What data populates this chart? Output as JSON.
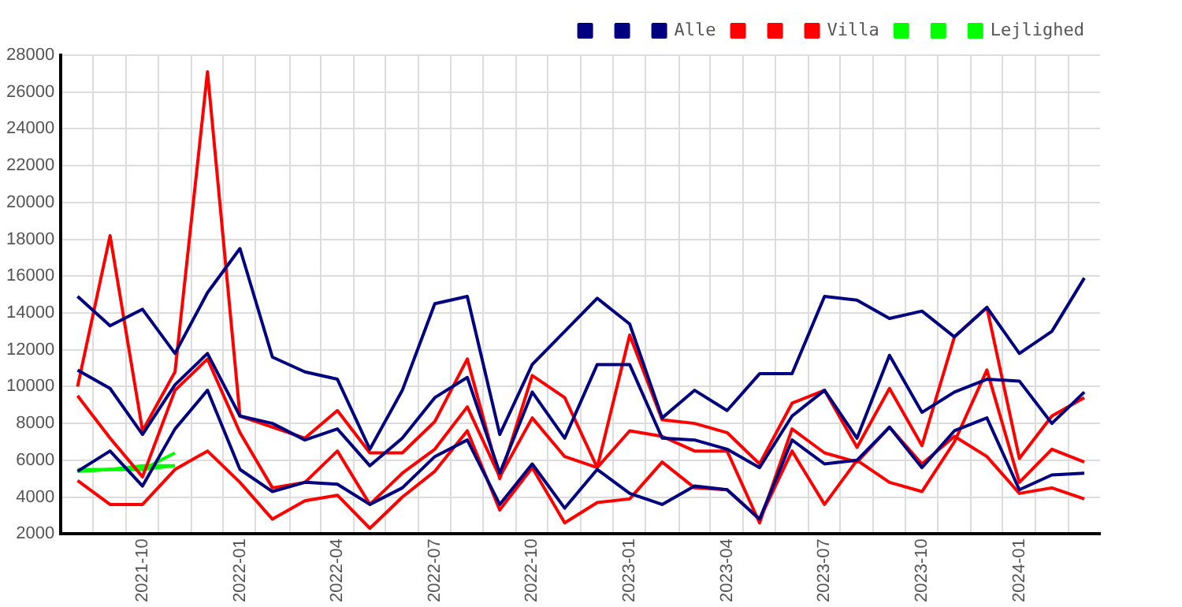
{
  "chart_data": {
    "type": "line",
    "x": [
      "2021-08",
      "2021-09",
      "2021-10",
      "2021-11",
      "2021-12",
      "2022-01",
      "2022-02",
      "2022-03",
      "2022-04",
      "2022-05",
      "2022-06",
      "2022-07",
      "2022-08",
      "2022-09",
      "2022-10",
      "2022-11",
      "2022-12",
      "2023-01",
      "2023-02",
      "2023-03",
      "2023-04",
      "2023-05",
      "2023-06",
      "2023-07",
      "2023-08",
      "2023-09",
      "2023-10",
      "2023-11",
      "2023-12",
      "2024-01",
      "2024-02",
      "2024-03"
    ],
    "series": [
      {
        "color": "#000080",
        "values": [
          14900,
          13300,
          14200,
          11800,
          15100,
          17500,
          11600,
          10800,
          10400,
          6600,
          9800,
          14500,
          14900,
          7400,
          11200,
          13000,
          14800,
          13400,
          8300,
          9800,
          8700,
          10700,
          10700,
          14900,
          14700,
          13700,
          14100,
          12700,
          14300,
          11800,
          13000,
          15900
        ]
      },
      {
        "color": "#000080",
        "values": [
          10900,
          9900,
          7400,
          10100,
          11800,
          8400,
          8000,
          7100,
          7700,
          5700,
          7200,
          9400,
          10500,
          5300,
          9700,
          7200,
          11200,
          11200,
          7200,
          7100,
          6600,
          5600,
          8400,
          9800,
          7200,
          11700,
          8600,
          9700,
          10400,
          10300,
          8000,
          9700
        ]
      },
      {
        "name": "Alle",
        "color": "#000080",
        "values": [
          5400,
          6500,
          4600,
          7700,
          9800,
          5500,
          4300,
          4800,
          4700,
          3600,
          4500,
          6200,
          7100,
          3600,
          5800,
          3400,
          5500,
          4200,
          3600,
          4600,
          4400,
          2800,
          7100,
          5800,
          6000,
          7800,
          5600,
          7600,
          8300,
          4400,
          5200,
          5300
        ]
      },
      {
        "color": "#ff0000",
        "values": [
          10000,
          18200,
          7600,
          10800,
          27100,
          8400,
          7800,
          7200,
          8700,
          6400,
          6400,
          8100,
          11500,
          5000,
          10600,
          9400,
          5600,
          12800,
          8200,
          8000,
          7500,
          5800,
          9100,
          9800,
          6700,
          9900,
          6800,
          12700,
          14300,
          6100,
          8400,
          9400
        ]
      },
      {
        "color": "#ff0000",
        "values": [
          9500,
          7200,
          5100,
          9800,
          11500,
          7500,
          4500,
          4800,
          6500,
          3600,
          5300,
          6600,
          8900,
          5100,
          8300,
          6200,
          5600,
          7600,
          7300,
          6500,
          6500,
          2600,
          7700,
          6400,
          5900,
          7800,
          5800,
          7300,
          6200,
          4200,
          4500,
          3900
        ]
      },
      {
        "name": "Villa",
        "color": "#ff0000",
        "values": [
          4900,
          3600,
          3600,
          5500,
          6500,
          4800,
          2800,
          3800,
          4100,
          2300,
          4000,
          5400,
          7600,
          3300,
          5600,
          2600,
          3700,
          3900,
          5900,
          4500,
          4400,
          2800,
          6500,
          3600,
          6000,
          4800,
          4300,
          7000,
          10900,
          4800,
          6600,
          5900
        ]
      },
      {
        "color": "#00ff00",
        "values": [
          5400,
          5500,
          5500,
          6400,
          null,
          null,
          null,
          null,
          null,
          null,
          null,
          null,
          null,
          null,
          null,
          null,
          null,
          null,
          null,
          null,
          null,
          null,
          null,
          null,
          null,
          null,
          null,
          null,
          null,
          null,
          null,
          null
        ]
      },
      {
        "color": "#00ff00",
        "values": [
          5500,
          5500,
          5700,
          5700,
          null,
          null,
          null,
          null,
          null,
          null,
          null,
          null,
          null,
          null,
          null,
          null,
          null,
          null,
          null,
          null,
          null,
          null,
          null,
          null,
          null,
          null,
          null,
          null,
          null,
          null,
          null,
          null
        ]
      },
      {
        "name": "Lejlighed",
        "color": "#00ff00",
        "values": [
          5400,
          5500,
          5500,
          5700,
          null,
          null,
          null,
          null,
          null,
          null,
          null,
          null,
          null,
          null,
          null,
          null,
          null,
          null,
          null,
          null,
          null,
          null,
          null,
          null,
          null,
          null,
          null,
          null,
          null,
          null,
          null,
          null
        ]
      }
    ],
    "xlim": [
      "2021-07-16",
      "2024-03-16"
    ],
    "xticks": [
      {
        "value": "2021-08-16",
        "label": null
      },
      {
        "value": "2021-09-16",
        "label": null
      },
      {
        "value": "2021-10",
        "label": "2021-10"
      },
      {
        "value": "2021-10-16",
        "label": null
      },
      {
        "value": "2021-11-16",
        "label": null
      },
      {
        "value": "2021-12-16",
        "label": null
      },
      {
        "value": "2022-01",
        "label": "2022-01"
      },
      {
        "value": "2022-01-16",
        "label": null
      },
      {
        "value": "2022-02-16",
        "label": null
      },
      {
        "value": "2022-03-16",
        "label": null
      },
      {
        "value": "2022-04",
        "label": "2022-04"
      },
      {
        "value": "2022-04-16",
        "label": null
      },
      {
        "value": "2022-05-16",
        "label": null
      },
      {
        "value": "2022-06-16",
        "label": null
      },
      {
        "value": "2022-07",
        "label": "2022-07"
      },
      {
        "value": "2022-07-16",
        "label": null
      },
      {
        "value": "2022-08-16",
        "label": null
      },
      {
        "value": "2022-09-16",
        "label": null
      },
      {
        "value": "2022-10",
        "label": "2022-10"
      },
      {
        "value": "2022-10-16",
        "label": null
      },
      {
        "value": "2022-11-16",
        "label": null
      },
      {
        "value": "2022-12-16",
        "label": null
      },
      {
        "value": "2023-01",
        "label": "2023-01"
      },
      {
        "value": "2023-01-16",
        "label": null
      },
      {
        "value": "2023-02-16",
        "label": null
      },
      {
        "value": "2023-03-16",
        "label": null
      },
      {
        "value": "2023-04",
        "label": "2023-04"
      },
      {
        "value": "2023-04-16",
        "label": null
      },
      {
        "value": "2023-05-16",
        "label": null
      },
      {
        "value": "2023-06-16",
        "label": null
      },
      {
        "value": "2023-07",
        "label": "2023-07"
      },
      {
        "value": "2023-07-16",
        "label": null
      },
      {
        "value": "2023-08-16",
        "label": null
      },
      {
        "value": "2023-09-16",
        "label": null
      },
      {
        "value": "2023-10",
        "label": "2023-10"
      },
      {
        "value": "2023-10-16",
        "label": null
      },
      {
        "value": "2023-11-16",
        "label": null
      },
      {
        "value": "2023-12-16",
        "label": null
      },
      {
        "value": "2024-01",
        "label": "2024-01"
      },
      {
        "value": "2024-01-16",
        "label": null
      },
      {
        "value": "2024-02-16",
        "label": null
      }
    ],
    "ylim": [
      2000,
      28000
    ],
    "yticks": [
      2000,
      4000,
      6000,
      8000,
      10000,
      12000,
      14000,
      16000,
      18000,
      20000,
      22000,
      24000,
      26000,
      28000
    ],
    "grid": true,
    "legend": "top right",
    "marker": "none",
    "line_style": "solid"
  }
}
